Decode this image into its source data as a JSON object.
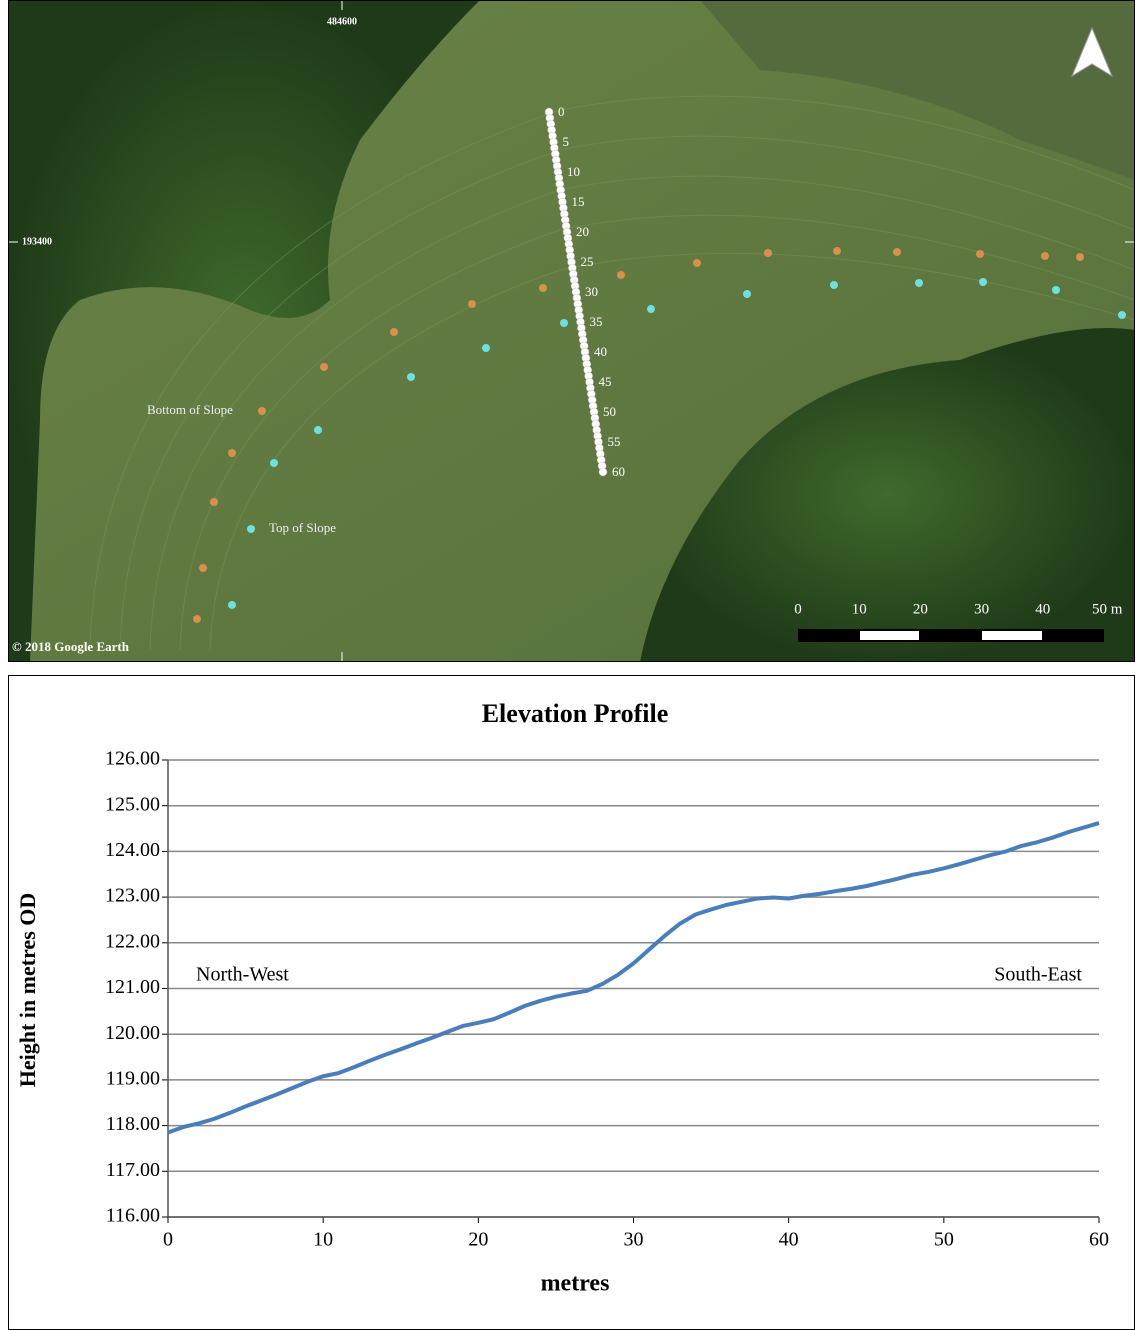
{
  "map": {
    "easting": "484600",
    "northing": "193400",
    "transect_labels": [
      "0",
      "5",
      "10",
      "15",
      "20",
      "25",
      "30",
      "35",
      "40",
      "45",
      "50",
      "55",
      "60"
    ],
    "bottom_label": "Bottom of Slope",
    "top_label": "Top of Slope",
    "copyright": "© 2018 Google Earth",
    "scale_labels": [
      "0",
      "10",
      "20",
      "30",
      "40",
      "50 m"
    ]
  },
  "chart_data": {
    "type": "line",
    "title": "Elevation Profile",
    "x_label": "metres",
    "y_label": "Height in metres OD",
    "annotations": [
      "North-West",
      "South-East"
    ],
    "x": [
      0,
      1,
      2,
      3,
      4,
      5,
      6,
      7,
      8,
      9,
      10,
      11,
      12,
      13,
      14,
      15,
      16,
      17,
      18,
      19,
      20,
      21,
      22,
      23,
      24,
      25,
      26,
      27,
      28,
      29,
      30,
      31,
      32,
      33,
      34,
      35,
      36,
      37,
      38,
      39,
      40,
      41,
      42,
      43,
      44,
      45,
      46,
      47,
      48,
      49,
      50,
      51,
      52,
      53,
      54,
      55,
      56,
      57,
      58,
      59,
      60
    ],
    "series": [
      {
        "color": "#4a7ebb",
        "values": [
          117.85,
          117.97,
          118.05,
          118.15,
          118.28,
          118.42,
          118.55,
          118.68,
          118.82,
          118.96,
          119.08,
          119.15,
          119.28,
          119.42,
          119.55,
          119.67,
          119.8,
          119.92,
          120.05,
          120.18,
          120.25,
          120.33,
          120.47,
          120.62,
          120.73,
          120.82,
          120.89,
          120.95,
          121.1,
          121.3,
          121.55,
          121.85,
          122.15,
          122.42,
          122.62,
          122.73,
          122.83,
          122.9,
          122.97,
          122.99,
          122.97,
          123.03,
          123.07,
          123.13,
          123.18,
          123.24,
          123.32,
          123.4,
          123.49,
          123.55,
          123.63,
          123.72,
          123.82,
          123.92,
          124.0,
          124.12,
          124.2,
          124.3,
          124.42,
          124.52,
          124.62
        ]
      }
    ],
    "xlim": [
      0,
      60
    ],
    "xticks": [
      0,
      10,
      20,
      30,
      40,
      50,
      60
    ],
    "ylim": [
      116,
      126
    ],
    "yticks": [
      {
        "value": 116,
        "label": "116.00"
      },
      {
        "value": 117,
        "label": "117.00"
      },
      {
        "value": 118,
        "label": "118.00"
      },
      {
        "value": 119,
        "label": "119.00"
      },
      {
        "value": 120,
        "label": "120.00"
      },
      {
        "value": 121,
        "label": "121.00"
      },
      {
        "value": 122,
        "label": "122.00"
      },
      {
        "value": 123,
        "label": "123.00"
      },
      {
        "value": 124,
        "label": "124.00"
      },
      {
        "value": 125,
        "label": "125.00"
      },
      {
        "value": 126,
        "label": "126.00"
      }
    ],
    "grid": true
  }
}
